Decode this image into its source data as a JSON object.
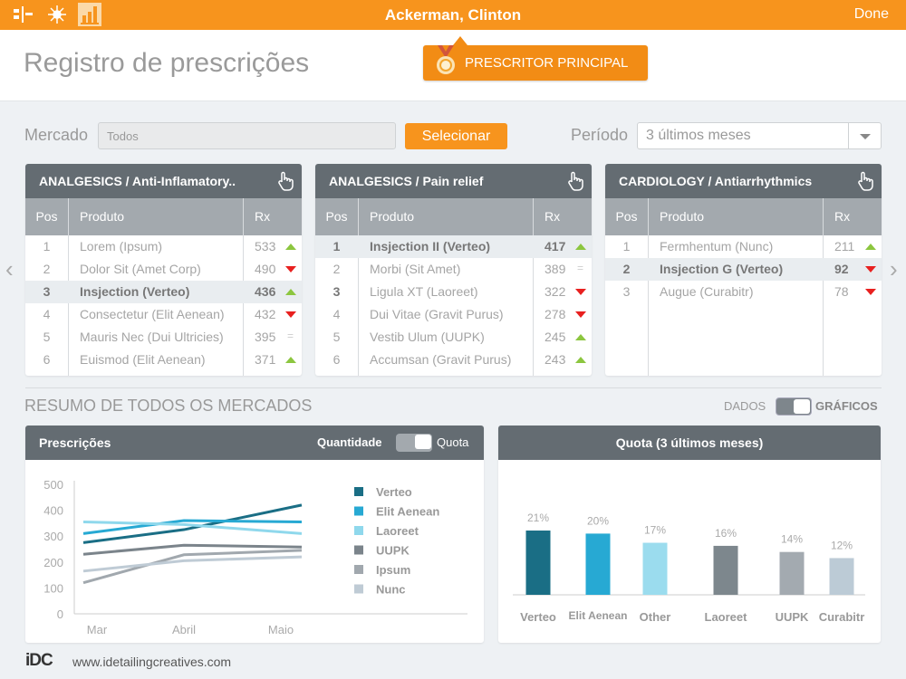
{
  "topbar": {
    "title": "Ackerman, Clinton",
    "done": "Done",
    "icons": [
      "org-chart-icon",
      "network-icon",
      "bar-chart-icon"
    ]
  },
  "header": {
    "title": "Registro de prescrições",
    "badge": "PRESCRITOR PRINCIPAL"
  },
  "filters": {
    "market_label": "Mercado",
    "market_value": "Todos",
    "select_button": "Selecionar",
    "period_label": "Período",
    "period_value": "3 últimos meses"
  },
  "tables": [
    {
      "title": "ANALGESICS / Anti-Inflamatory..",
      "cols": [
        "Pos",
        "Produto",
        "Rx"
      ],
      "rows": [
        {
          "pos": "1",
          "product": "Lorem (Ipsum)",
          "rx": "533",
          "trend": "up"
        },
        {
          "pos": "2",
          "product": "Dolor Sit (Amet Corp)",
          "rx": "490",
          "trend": "down"
        },
        {
          "pos": "3",
          "product": "Insjection (Verteo)",
          "rx": "436",
          "trend": "up",
          "highlight": true
        },
        {
          "pos": "4",
          "product": "Consectetur (Elit Aenean)",
          "rx": "432",
          "trend": "down"
        },
        {
          "pos": "5",
          "product": "Mauris Nec (Dui Ultricies)",
          "rx": "395",
          "trend": "equal"
        },
        {
          "pos": "6",
          "product": "Euismod (Elit Aenean)",
          "rx": "371",
          "trend": "up"
        }
      ]
    },
    {
      "title": "ANALGESICS / Pain relief",
      "cols": [
        "Pos",
        "Produto",
        "Rx"
      ],
      "rows": [
        {
          "pos": "1",
          "product": "Insjection II (Verteo)",
          "rx": "417",
          "trend": "up",
          "highlight": true
        },
        {
          "pos": "2",
          "product": "Morbi (Sit Amet)",
          "rx": "389",
          "trend": "equal"
        },
        {
          "pos": "3",
          "product": "Ligula XT (Laoreet)",
          "rx": "322",
          "trend": "down"
        },
        {
          "pos": "4",
          "product": "Dui Vitae (Gravit Purus)",
          "rx": "278",
          "trend": "down"
        },
        {
          "pos": "5",
          "product": "Vestib Ulum (UUPK)",
          "rx": "245",
          "trend": "up"
        },
        {
          "pos": "6",
          "product": "Accumsan (Gravit Purus)",
          "rx": "243",
          "trend": "up"
        }
      ]
    },
    {
      "title": "CARDIOLOGY / Antiarrhythmics",
      "cols": [
        "Pos",
        "Produto",
        "Rx"
      ],
      "rows": [
        {
          "pos": "1",
          "product": "Fermhentum (Nunc)",
          "rx": "211",
          "trend": "up"
        },
        {
          "pos": "2",
          "product": "Insjection G (Verteo)",
          "rx": "92",
          "trend": "down",
          "highlight": true
        },
        {
          "pos": "3",
          "product": "Augue (Curabitr)",
          "rx": "78",
          "trend": "down"
        }
      ]
    }
  ],
  "summary": {
    "title": "RESUMO DE TODOS OS MERCADOS",
    "toggle_left": "DADOS",
    "toggle_right": "GRÁFICOS"
  },
  "chart_data": [
    {
      "type": "line",
      "title": "Prescrições",
      "toggle_left": "Quantidade",
      "toggle_right": "Quota",
      "x": [
        "Mar",
        "Abril",
        "Maio"
      ],
      "ylim": [
        0,
        500
      ],
      "yticks": [
        "0",
        "100",
        "200",
        "300",
        "400",
        "500"
      ],
      "legend": "right",
      "series": [
        {
          "name": "Verteo",
          "color": "#1a6e85",
          "values": [
            275,
            325,
            420
          ]
        },
        {
          "name": "Elit Aenean",
          "color": "#27a9d3",
          "values": [
            310,
            360,
            355
          ]
        },
        {
          "name": "Laoreet",
          "color": "#8fd8ec",
          "values": [
            355,
            345,
            310
          ]
        },
        {
          "name": "UUPK",
          "color": "#7b848b",
          "values": [
            230,
            265,
            258
          ]
        },
        {
          "name": "Ipsum",
          "color": "#a1a8ae",
          "values": [
            120,
            228,
            245
          ]
        },
        {
          "name": "Nunc",
          "color": "#bfcbd5",
          "values": [
            165,
            205,
            220
          ]
        }
      ]
    },
    {
      "type": "bar",
      "title": "Quota (3 últimos meses)",
      "categories": [
        "Verteo",
        "Elit Aenean",
        "Other",
        "Laoreet",
        "UUPK",
        "Curabitr"
      ],
      "values": [
        21,
        20,
        17,
        16,
        14,
        12
      ],
      "labels": [
        "21%",
        "20%",
        "17%",
        "16%",
        "14%",
        "12%"
      ],
      "colors": [
        "#1a6e85",
        "#27a9d3",
        "#9bdcee",
        "#7d878d",
        "#a3aab0",
        "#bccbd6"
      ]
    }
  ],
  "footer": {
    "logo": "iDC",
    "url": "www.idetailingcreatives.com"
  }
}
